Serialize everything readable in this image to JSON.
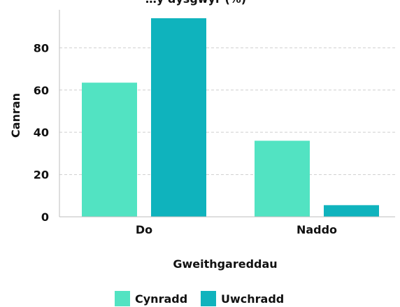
{
  "chart_data": {
    "type": "bar",
    "title": "",
    "title_partial_visible": "…y dysgwyr (%)",
    "xlabel": "Gweithgareddau",
    "ylabel": "Canran",
    "categories": [
      "Do",
      "Naddo"
    ],
    "series": [
      {
        "name": "Cynradd",
        "values": [
          63.5,
          36.0
        ],
        "color": "#52e3c2"
      },
      {
        "name": "Uwchradd",
        "values": [
          94.0,
          5.5
        ],
        "color": "#0fb3bd"
      }
    ],
    "ylim": [
      0,
      98
    ],
    "yticks": [
      0,
      20,
      40,
      60,
      80
    ],
    "grid": true,
    "legend_position": "bottom-center"
  }
}
